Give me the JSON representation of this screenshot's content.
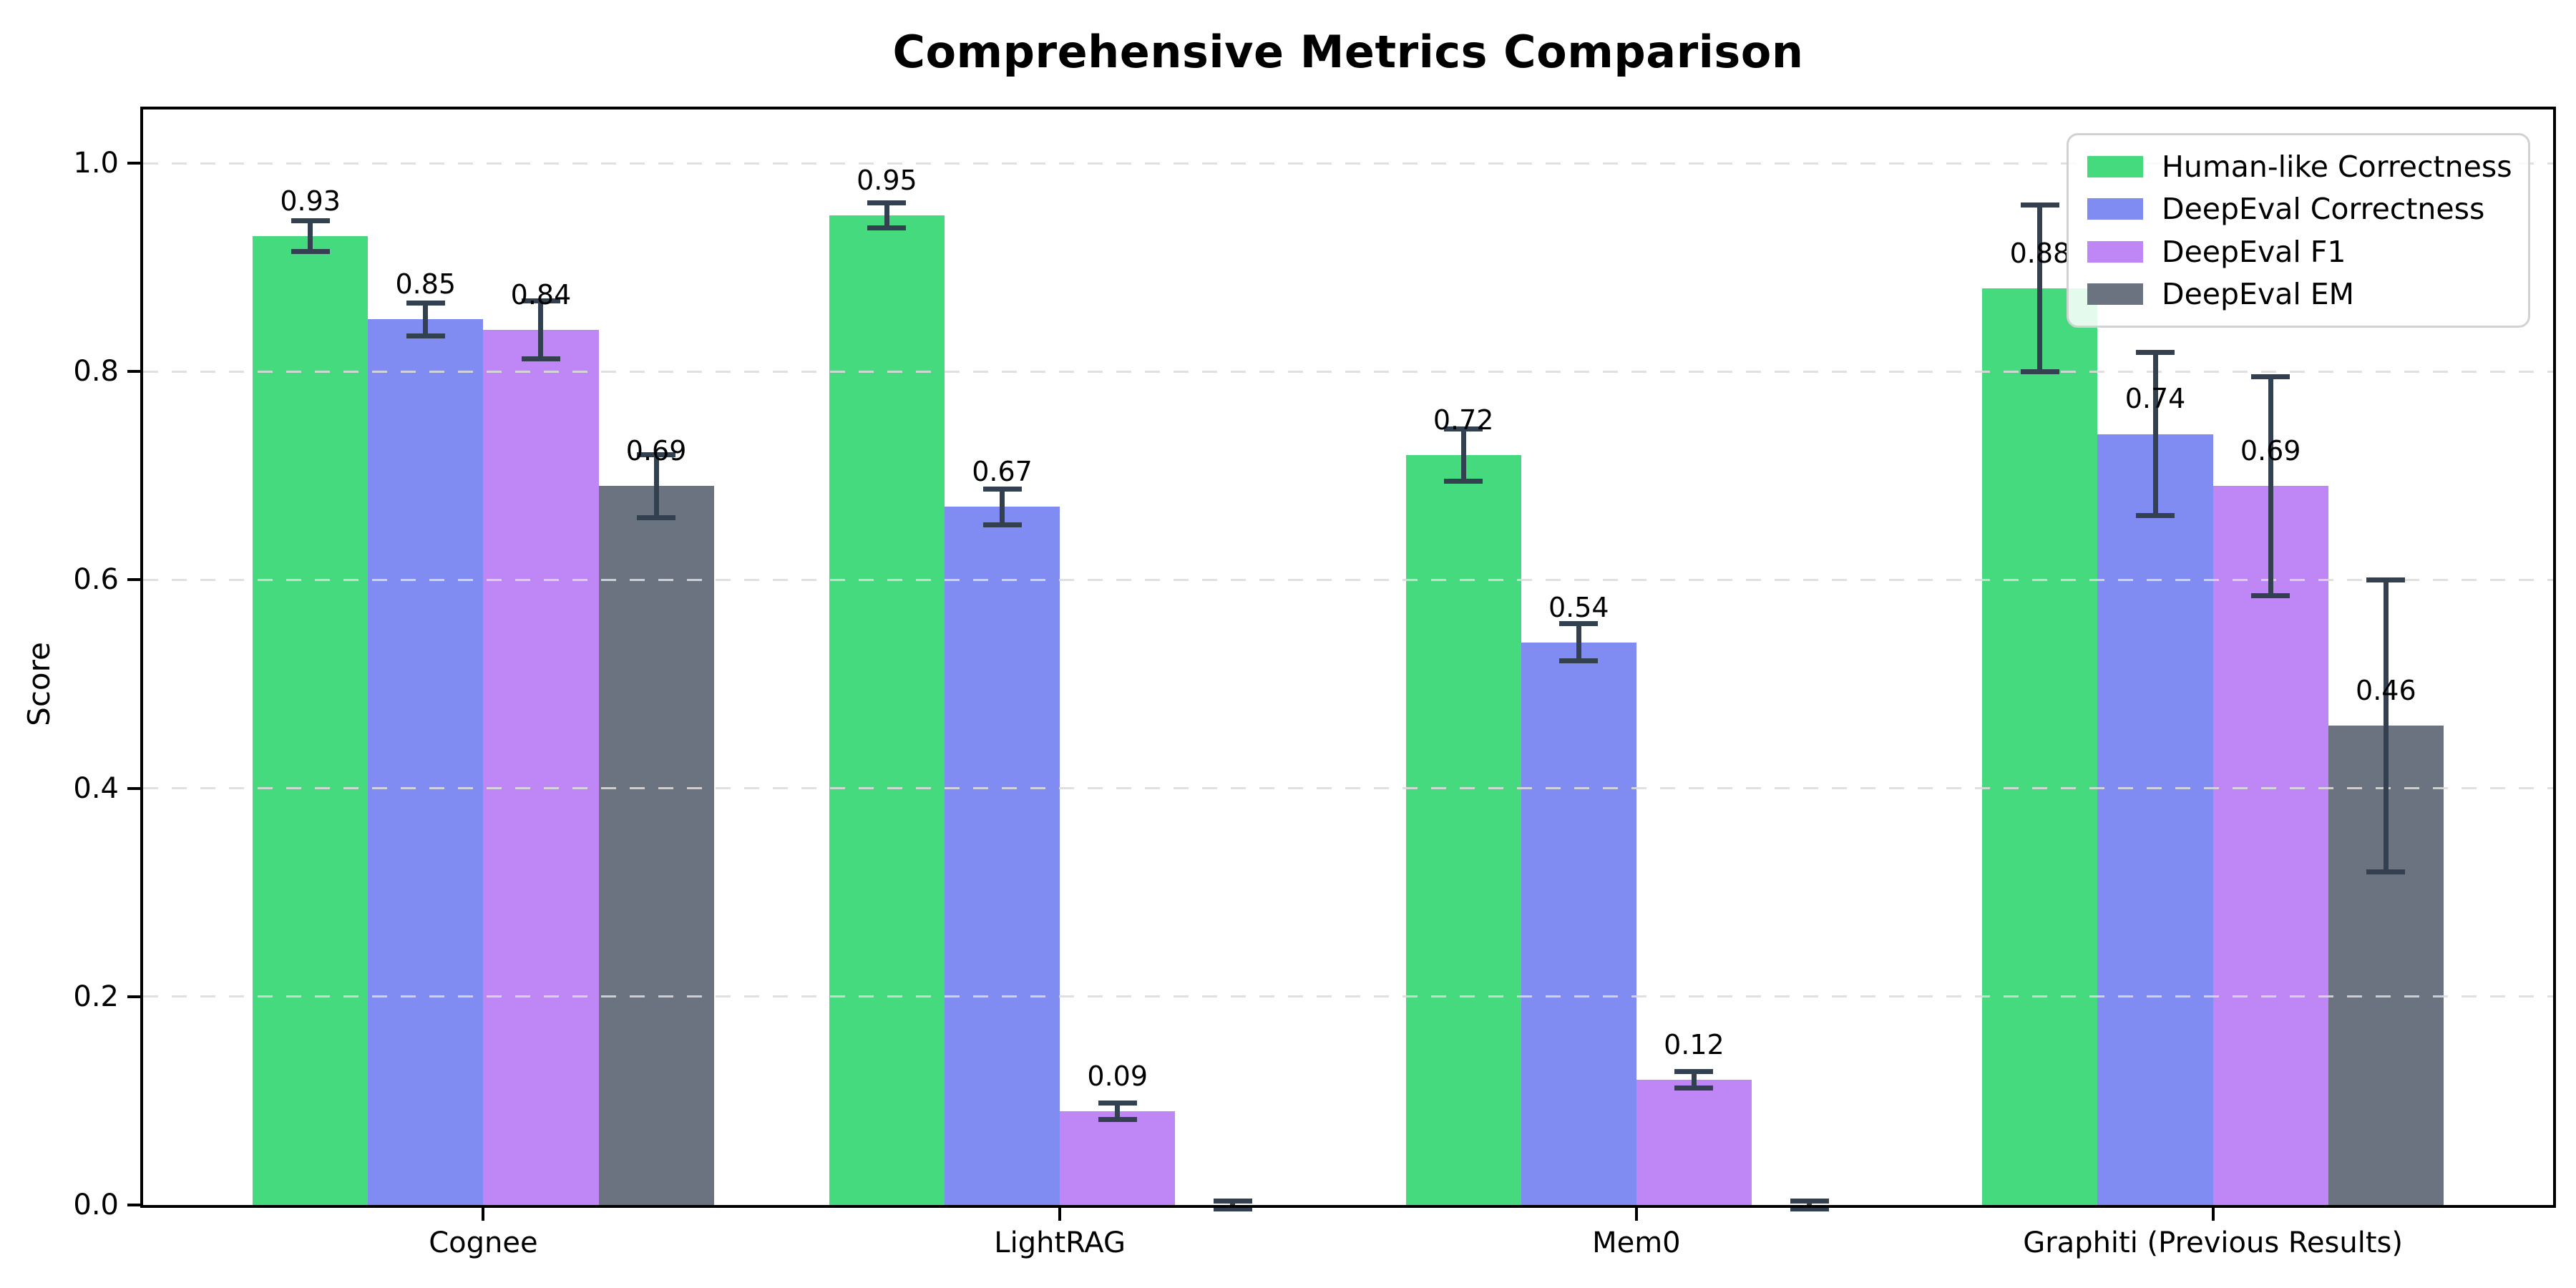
{
  "title": "Comprehensive Metrics Comparison",
  "chart_data": {
    "type": "bar",
    "title": "Comprehensive Metrics Comparison",
    "xlabel": "",
    "ylabel": "Score",
    "categories": [
      "Cognee",
      "LightRAG",
      "Mem0",
      "Graphiti (Previous Results)"
    ],
    "series": [
      {
        "name": "Human-like Correctness",
        "color": "#45da7d",
        "values": [
          0.93,
          0.95,
          0.72,
          0.88
        ],
        "errors": [
          0.015,
          0.012,
          0.025,
          0.08
        ]
      },
      {
        "name": "DeepEval Correctness",
        "color": "#808cf2",
        "values": [
          0.85,
          0.67,
          0.54,
          0.74
        ],
        "errors": [
          0.016,
          0.017,
          0.018,
          0.078
        ]
      },
      {
        "name": "DeepEval F1",
        "color": "#bf87f5",
        "values": [
          0.84,
          0.09,
          0.12,
          0.69
        ],
        "errors": [
          0.028,
          0.008,
          0.008,
          0.105
        ]
      },
      {
        "name": "DeepEval EM",
        "color": "#6b7280",
        "values": [
          0.69,
          0.0,
          0.0,
          0.46
        ],
        "errors": [
          0.03,
          0.004,
          0.004,
          0.14
        ]
      }
    ],
    "value_label_format": "0.00",
    "yticks": [
      "0.0",
      "0.2",
      "0.4",
      "0.6",
      "0.8",
      "1.0"
    ],
    "ytick_values": [
      0.0,
      0.2,
      0.4,
      0.6,
      0.8,
      1.0
    ],
    "ylim": [
      0,
      1.05
    ],
    "grid": "horizontal dashed",
    "legend_position": "upper right"
  },
  "colors": {
    "error_bar": "#33404f",
    "grid_line": "#dbdbdb",
    "axis": "#000000",
    "legend_border": "#d2d2d2",
    "background": "#ffffff"
  }
}
